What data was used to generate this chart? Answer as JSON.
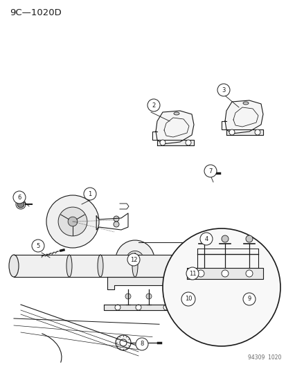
{
  "title": "9C—1020D",
  "background_color": "#ffffff",
  "line_color": "#1a1a1a",
  "watermark": "94309  1020",
  "fig_width": 4.14,
  "fig_height": 5.33,
  "dpi": 100
}
